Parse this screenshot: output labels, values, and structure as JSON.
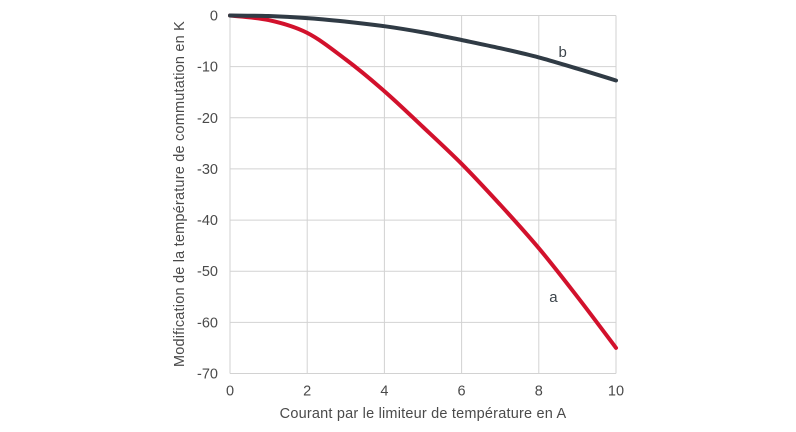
{
  "chart_data": {
    "type": "line",
    "title": "",
    "xlabel": "Courant par le limiteur de température en A",
    "ylabel": "Modification de la température de commutation en K",
    "xlim": [
      0,
      10
    ],
    "ylim": [
      -70,
      0
    ],
    "xticks": [
      0,
      2,
      4,
      6,
      8,
      10
    ],
    "yticks": [
      0,
      -10,
      -20,
      -30,
      -40,
      -50,
      -60,
      -70
    ],
    "grid": true,
    "legend_position": "inline-labels",
    "colors": {
      "series_a": "#d2112c",
      "series_b": "#303b45",
      "grid": "#d2d2d2",
      "text": "#4a4a4a"
    },
    "x": [
      0,
      1,
      2,
      3,
      4,
      5,
      6,
      7,
      8,
      9,
      10
    ],
    "series": [
      {
        "name": "a",
        "color_key": "series_a",
        "values": [
          0,
          -0.9,
          -3.4,
          -8.6,
          -14.8,
          -21.8,
          -29,
          -37,
          -45.5,
          -55,
          -65
        ],
        "label_pos": {
          "x": 8.38,
          "y": -55
        }
      },
      {
        "name": "b",
        "color_key": "series_b",
        "values": [
          0,
          -0.1,
          -0.5,
          -1.2,
          -2.1,
          -3.3,
          -4.8,
          -6.4,
          -8.2,
          -10.4,
          -12.7
        ],
        "label_pos": {
          "x": 8.62,
          "y": -7.1
        }
      }
    ]
  }
}
